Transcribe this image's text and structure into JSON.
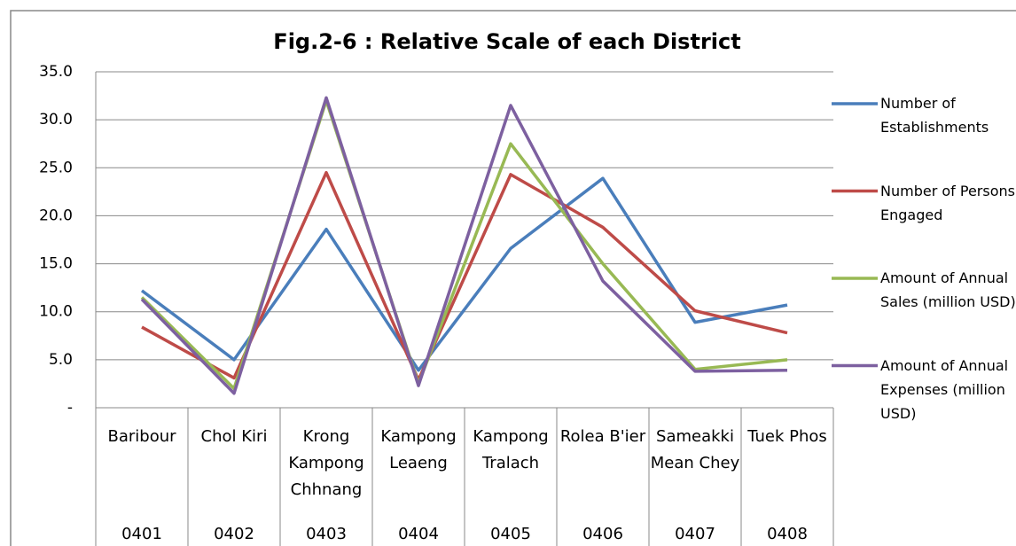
{
  "chart_data": {
    "type": "line",
    "title": "Fig.2-6 : Relative Scale of each District",
    "categories": [
      "Baribour",
      "Chol Kiri",
      "Krong Kampong Chhnang",
      "Kampong Leaeng",
      "Kampong Tralach",
      "Rolea B'ier",
      "Sameakki Mean Chey",
      "Tuek Phos"
    ],
    "codes": [
      "0401",
      "0402",
      "0403",
      "0404",
      "0405",
      "0406",
      "0407",
      "0408"
    ],
    "series": [
      {
        "name": "Number of Establishments",
        "color": "#4a7ebb",
        "values": [
          12.2,
          5.0,
          18.6,
          3.9,
          16.6,
          23.9,
          8.9,
          10.7
        ]
      },
      {
        "name": "Number of Persons Engaged",
        "color": "#be4b48",
        "values": [
          8.4,
          3.1,
          24.5,
          2.9,
          24.3,
          18.8,
          10.1,
          7.8
        ]
      },
      {
        "name": "Amount of Annual Sales (million USD)",
        "color": "#98b954",
        "values": [
          11.5,
          2.0,
          32.0,
          2.5,
          27.5,
          15.0,
          4.0,
          5.0
        ]
      },
      {
        "name": "Amount of Annual Expenses (million USD)",
        "color": "#7d60a0",
        "values": [
          11.3,
          1.5,
          32.3,
          2.3,
          31.5,
          13.2,
          3.8,
          3.9
        ]
      }
    ],
    "ylim": [
      0,
      35
    ],
    "yticks": [
      {
        "value": 0,
        "label": "-"
      },
      {
        "value": 5,
        "label": "5.0"
      },
      {
        "value": 10,
        "label": "10.0"
      },
      {
        "value": 15,
        "label": "15.0"
      },
      {
        "value": 20,
        "label": "20.0"
      },
      {
        "value": 25,
        "label": "25.0"
      },
      {
        "value": 30,
        "label": "30.0"
      },
      {
        "value": 35,
        "label": "35.0"
      }
    ],
    "grid": true,
    "legend": "right"
  }
}
